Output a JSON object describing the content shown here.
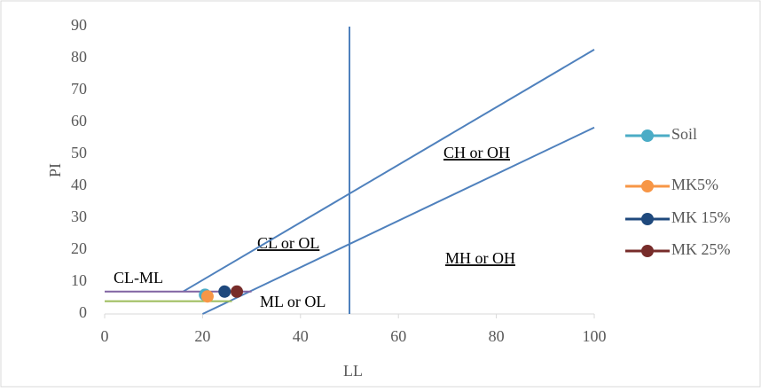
{
  "chart_data": {
    "type": "scatter",
    "x_label": "LL",
    "y_label": "PI",
    "xlim": [
      0,
      100
    ],
    "ylim": [
      0,
      90
    ],
    "xticks": [
      0,
      20,
      40,
      60,
      80,
      100
    ],
    "yticks": [
      0,
      10,
      20,
      30,
      40,
      50,
      60,
      70,
      80,
      90
    ],
    "grid": false,
    "legend": "right",
    "series": [
      {
        "name": "Soil",
        "color": "#4bacc6",
        "x": [
          20.5
        ],
        "values": [
          6
        ]
      },
      {
        "name": "MK5%",
        "color": "#f79646",
        "x": [
          21
        ],
        "values": [
          5.5
        ]
      },
      {
        "name": "MK 15%",
        "color": "#1f497d",
        "x": [
          24.5
        ],
        "values": [
          7
        ]
      },
      {
        "name": "MK 25%",
        "color": "#772c2a",
        "x": [
          27
        ],
        "values": [
          7
        ]
      }
    ],
    "reference_lines": [
      {
        "color": "#4f81bd",
        "x": [
          16,
          100
        ],
        "values": [
          7,
          82.8
        ]
      },
      {
        "color": "#4f81bd",
        "x": [
          20,
          100
        ],
        "values": [
          0,
          58.4
        ]
      },
      {
        "color": "#4f81bd",
        "x": [
          50,
          50
        ],
        "values": [
          0,
          90
        ]
      },
      {
        "color": "#8064a2",
        "x": [
          0,
          30
        ],
        "values": [
          7,
          7
        ]
      },
      {
        "color": "#9bbb59",
        "x": [
          0,
          26
        ],
        "values": [
          4,
          4
        ]
      }
    ],
    "annotations": [
      "CL-ML",
      "CL or OL",
      "ML or OL",
      "CH or OH",
      "MH or OH"
    ]
  }
}
